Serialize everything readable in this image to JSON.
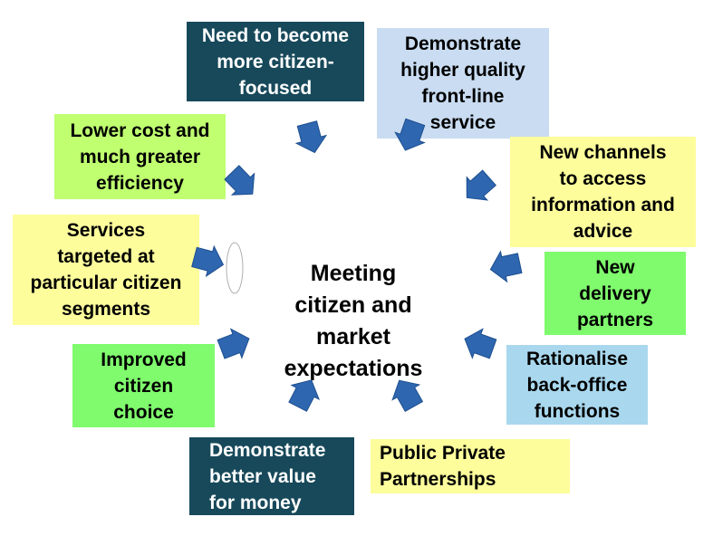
{
  "center_label": "Meeting\ncitizen and\nmarket\nexpectations",
  "boxes": {
    "citizen_focused": "Need to become\nmore citizen-\nfocused",
    "front_line": "Demonstrate\nhigher quality\nfront-line\nservice",
    "new_channels": "New channels\nto access\ninformation and\nadvice",
    "delivery_partners": "New\ndelivery\npartners",
    "back_office": "Rationalise\nback-office\nfunctions",
    "ppp": "Public Private\nPartnerships",
    "value_money": "Demonstrate\nbetter      value\nfor money",
    "citizen_choice": "Improved\ncitizen\nchoice",
    "services_targeted": "Services\ntargeted at\nparticular citizen\nsegments",
    "lower_cost": "Lower cost and\nmuch greater\nefficiency"
  },
  "colors": {
    "dark_teal": "#17495a",
    "light_blue": "#c9dcf1",
    "yellow": "#fdfd9c",
    "green": "#7ffb6d",
    "light_green": "#bfff70",
    "sky_blue": "#a9d8ee",
    "arrow": "#2e66b0"
  },
  "arrow_icon": "inward-arrow-icon"
}
